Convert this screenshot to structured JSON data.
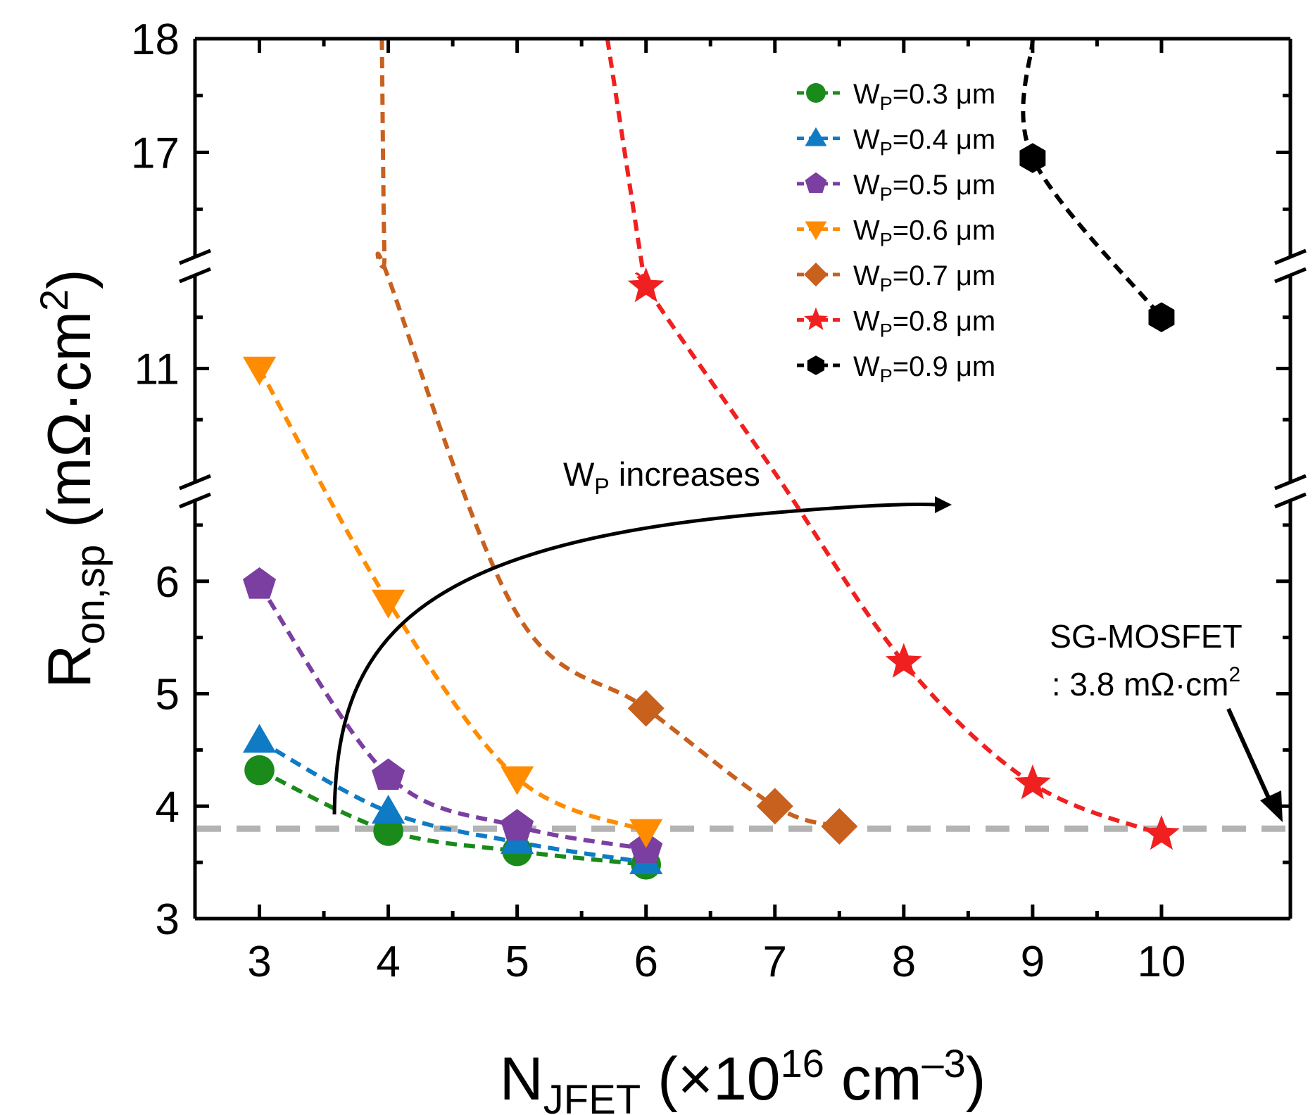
{
  "chart_data": {
    "type": "line",
    "xlabel_main": "N",
    "xlabel_sub": "JFET",
    "xlabel_rest": " (×10",
    "xlabel_exp": "16",
    "xlabel_unit": " cm",
    "xlabel_unit_exp": "–3",
    "xlabel_close": ")",
    "ylabel_main": "R",
    "ylabel_sub": "on,sp",
    "ylabel_rest": " (mΩ·cm",
    "ylabel_exp": "2",
    "ylabel_close": ")",
    "xlim": [
      2.5,
      11
    ],
    "x_ticks": [
      "3",
      "4",
      "5",
      "6",
      "7",
      "8",
      "9",
      "10"
    ],
    "y_segments": [
      {
        "range": [
          3,
          6.8
        ],
        "ticks": [
          "3",
          "4",
          "5",
          "6"
        ]
      },
      {
        "range": [
          9.8,
          12.0
        ],
        "ticks": [
          "11"
        ]
      },
      {
        "range": [
          16.0,
          18.0
        ],
        "ticks": [
          "17",
          "18"
        ]
      }
    ],
    "reference_line": {
      "y": 3.8,
      "color": "#b3b3b3"
    },
    "series": [
      {
        "name_prefix": "W",
        "name_sub": "P",
        "name_suffix": "=0.3 μm",
        "color": "#1a8a1a",
        "marker": "circle",
        "points": [
          [
            3,
            4.32
          ],
          [
            4,
            3.78
          ],
          [
            5,
            3.6
          ],
          [
            6,
            3.48
          ]
        ],
        "curve": [
          [
            3,
            4.32
          ],
          [
            4,
            3.78
          ],
          [
            5,
            3.6
          ],
          [
            6,
            3.48
          ]
        ]
      },
      {
        "name_prefix": "W",
        "name_sub": "P",
        "name_suffix": "=0.4 μm",
        "color": "#0e7bc4",
        "marker": "triangle-up",
        "points": [
          [
            3,
            4.58
          ],
          [
            4,
            3.95
          ],
          [
            5,
            3.68
          ],
          [
            6,
            3.5
          ]
        ],
        "curve": [
          [
            3,
            4.58
          ],
          [
            4,
            3.95
          ],
          [
            5,
            3.68
          ],
          [
            6,
            3.5
          ]
        ]
      },
      {
        "name_prefix": "W",
        "name_sub": "P",
        "name_suffix": "=0.5 μm",
        "color": "#7a3fa0",
        "marker": "pentagon",
        "points": [
          [
            3,
            5.97
          ],
          [
            4,
            4.27
          ],
          [
            5,
            3.82
          ],
          [
            6,
            3.62
          ]
        ],
        "curve": [
          [
            3,
            5.97
          ],
          [
            4,
            4.27
          ],
          [
            5,
            3.82
          ],
          [
            6,
            3.62
          ]
        ]
      },
      {
        "name_prefix": "W",
        "name_sub": "P",
        "name_suffix": "=0.6 μm",
        "color": "#ff8c00",
        "marker": "triangle-down",
        "points": [
          [
            3,
            11.0
          ],
          [
            4,
            5.82
          ],
          [
            5,
            4.25
          ],
          [
            6,
            3.78
          ]
        ],
        "curve": [
          [
            3,
            11.0
          ],
          [
            4,
            5.82
          ],
          [
            5,
            4.25
          ],
          [
            6,
            3.78
          ]
        ]
      },
      {
        "name_prefix": "W",
        "name_sub": "P",
        "name_suffix": "=0.7 μm",
        "color": "#c8601e",
        "marker": "diamond",
        "points": [
          [
            6,
            4.87
          ],
          [
            7,
            4.0
          ],
          [
            7.5,
            3.82
          ]
        ],
        "curve": [
          [
            3.95,
            18.0
          ],
          [
            3.97,
            16.1
          ],
          [
            4.0,
            15.9
          ],
          [
            5,
            8.6
          ],
          [
            6,
            4.87
          ],
          [
            7,
            4.0
          ],
          [
            7.5,
            3.82
          ]
        ]
      },
      {
        "name_prefix": "W",
        "name_sub": "P",
        "name_suffix": "=0.8 μm",
        "color": "#f02020",
        "marker": "star",
        "points": [
          [
            6,
            11.8
          ],
          [
            8,
            5.28
          ],
          [
            9,
            4.2
          ],
          [
            10,
            3.75
          ]
        ],
        "curve": [
          [
            5.7,
            18.0
          ],
          [
            5.97,
            16.0
          ],
          [
            6,
            11.8
          ],
          [
            7,
            9.98
          ],
          [
            8,
            5.28
          ],
          [
            9,
            4.2
          ],
          [
            10,
            3.75
          ]
        ]
      },
      {
        "name_prefix": "W",
        "name_sub": "P",
        "name_suffix": "=0.9 μm",
        "color": "#000000",
        "marker": "hexagon",
        "points": [
          [
            9,
            16.95
          ],
          [
            10,
            11.5
          ]
        ],
        "curve": [
          [
            9,
            18.0
          ],
          [
            9,
            16.95
          ],
          [
            10,
            11.5
          ]
        ]
      }
    ],
    "annotation_arrow": {
      "label_main": "W",
      "label_sub": "P",
      "label_rest": " increases"
    },
    "annotation_ref": {
      "line1": "SG-MOSFET",
      "line2": ": 3.8 mΩ·cm",
      "line2_exp": "2"
    },
    "legend_position": "top-right"
  }
}
